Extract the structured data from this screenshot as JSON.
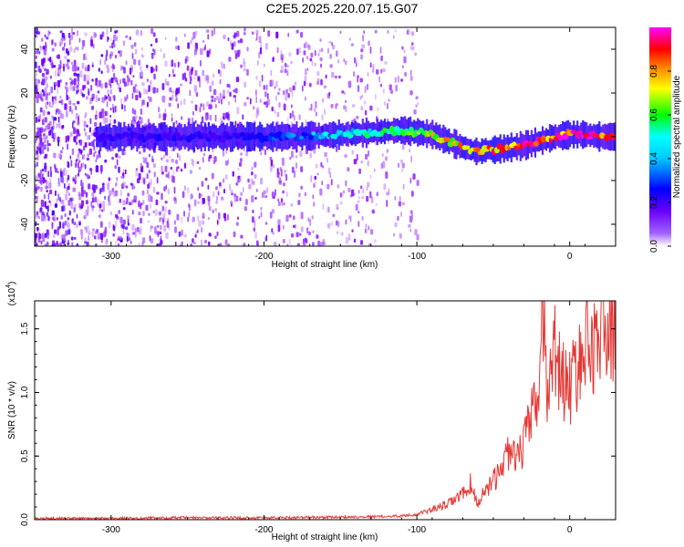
{
  "title": "C2E5.2025.220.07.15.G07",
  "chart_data": [
    {
      "type": "heatmap",
      "xlabel": "Height of straight line (km)",
      "ylabel": "Frequency (Hz)",
      "xlim": [
        -350,
        30
      ],
      "ylim": [
        -50,
        50
      ],
      "xticks": [
        "-300",
        "-200",
        "-100",
        "0"
      ],
      "yticks": [
        "-40",
        "-20",
        "0",
        "20",
        "40"
      ],
      "colorbar": {
        "label": "Normalized spectral amplitude",
        "range": [
          0.0,
          1.0
        ],
        "ticks": [
          "0.0",
          "0.2",
          "0.4",
          "0.6",
          "0.8"
        ],
        "colors": [
          "#ffffff",
          "#7f00ff",
          "#0000ff",
          "#00ffff",
          "#00ff00",
          "#ffff00",
          "#ff0000",
          "#ff00ff"
        ]
      },
      "ridge": {
        "height_km": [
          -310,
          -300,
          -280,
          -250,
          -220,
          -200,
          -180,
          -150,
          -130,
          -110,
          -100,
          -90,
          -80,
          -70,
          -60,
          -55,
          -50,
          -40,
          -30,
          -20,
          -10,
          0,
          10,
          20,
          30
        ],
        "frequency_hz": [
          0,
          0,
          0,
          0,
          0,
          0,
          0,
          1,
          2,
          3,
          2,
          1,
          -2,
          -5,
          -7,
          -6,
          -6,
          -5,
          -4,
          -2,
          0,
          1,
          1,
          0,
          0
        ],
        "amplitude": [
          0.2,
          0.25,
          0.25,
          0.25,
          0.25,
          0.3,
          0.35,
          0.45,
          0.5,
          0.6,
          0.65,
          0.7,
          0.75,
          0.8,
          0.85,
          0.8,
          0.85,
          0.9,
          0.9,
          0.9,
          0.95,
          0.95,
          0.95,
          0.9,
          0.9
        ]
      },
      "noise_region_km": [
        -350,
        -100
      ]
    },
    {
      "type": "line",
      "xlabel": "Height of straight line (km)",
      "ylabel": "SNR (10 * v/v)",
      "scale_label": "(x10",
      "scale_exponent": "4",
      "scale_close": ")",
      "xlim": [
        -350,
        30
      ],
      "ylim": [
        0,
        1.72
      ],
      "xticks": [
        "-300",
        "-200",
        "-100",
        "0"
      ],
      "yticks": [
        "0.0",
        "0.5",
        "1.0",
        "1.5"
      ],
      "color": "#e53935",
      "series": [
        {
          "x": [
            -350,
            -300,
            -250,
            -200,
            -150,
            -120,
            -110,
            -100,
            -90,
            -80,
            -70,
            -65,
            -60,
            -55,
            -50,
            -45,
            -40,
            -35,
            -30,
            -25,
            -20,
            -18,
            -15,
            -10,
            -5,
            0,
            5,
            10,
            15,
            20,
            25,
            30
          ],
          "y": [
            0.01,
            0.01,
            0.015,
            0.015,
            0.02,
            0.025,
            0.03,
            0.04,
            0.08,
            0.12,
            0.2,
            0.28,
            0.12,
            0.25,
            0.3,
            0.4,
            0.55,
            0.45,
            0.6,
            0.8,
            1.0,
            1.72,
            1.05,
            1.35,
            1.1,
            1.05,
            1.2,
            1.35,
            1.4,
            1.45,
            1.5,
            1.55
          ]
        }
      ]
    }
  ]
}
